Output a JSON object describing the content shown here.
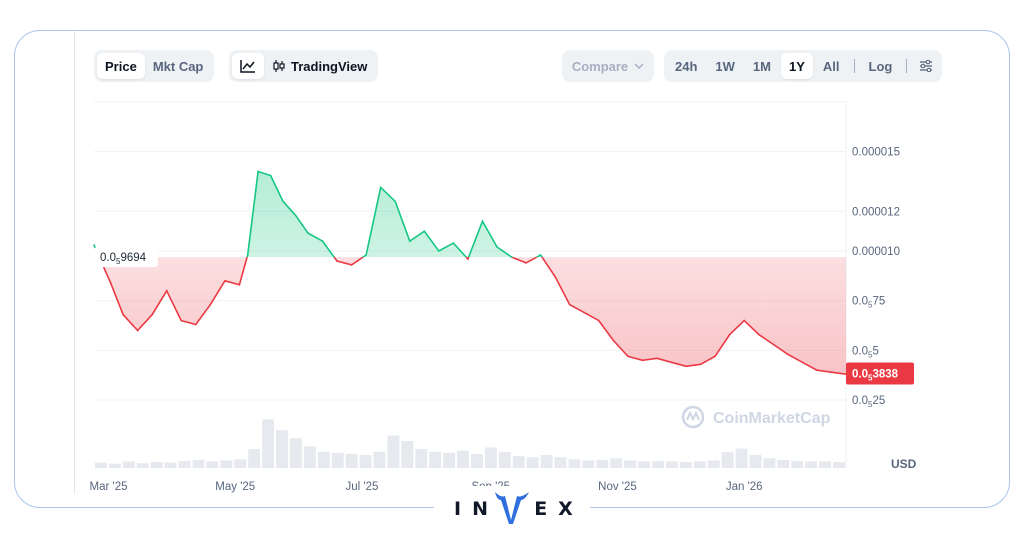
{
  "toolbar": {
    "metric_tabs": [
      "Price",
      "Mkt Cap"
    ],
    "active_metric": "Price",
    "view_tradingview_label": "TradingView",
    "compare_label": "Compare",
    "ranges": [
      "24h",
      "1W",
      "1M",
      "1Y",
      "All"
    ],
    "active_range": "1Y",
    "log_label": "Log"
  },
  "colors": {
    "up": "#16c784",
    "down": "#ea3943",
    "baseline_label_bg": "#ffffff",
    "current_label_bg": "#ea3943"
  },
  "icons": [
    "line-chart-icon",
    "candlestick-icon",
    "chevron-down-icon",
    "settings-sliders-icon",
    "coinmarketcap-logo-icon"
  ],
  "watermark": "CoinMarketCap",
  "currency_label": "USD",
  "brand": "INVEX",
  "chart_data": {
    "type": "area",
    "currency": "USD",
    "x_ticks": [
      "Mar '25",
      "May '25",
      "Jul '25",
      "Sep '25",
      "Nov '25",
      "Jan '26"
    ],
    "y_ticks": [
      {
        "value": 2.5e-06,
        "zeros": "5",
        "digits": "25"
      },
      {
        "value": 5e-06,
        "zeros": "5",
        "digits": "5"
      },
      {
        "value": 7.5e-06,
        "zeros": "5",
        "digits": "75"
      },
      {
        "value": 1e-05,
        "text": "0.000010"
      },
      {
        "value": 1.2e-05,
        "text": "0.000012"
      },
      {
        "value": 1.5e-05,
        "text": "0.000015"
      }
    ],
    "baseline": {
      "value": 9.694e-06,
      "zeros": "5",
      "digits": "9694"
    },
    "current": {
      "value": 3.838e-06,
      "zeros": "5",
      "digits": "3838"
    },
    "ylim": [
      2.2e-06,
      1.75e-05
    ],
    "grid": true,
    "series": [
      {
        "x": [
          "2025-02-22",
          "2025-03-02",
          "2025-03-08",
          "2025-03-15",
          "2025-03-22",
          "2025-03-29",
          "2025-04-05",
          "2025-04-12",
          "2025-04-19",
          "2025-04-26",
          "2025-05-03",
          "2025-05-07",
          "2025-05-12",
          "2025-05-18",
          "2025-05-24",
          "2025-05-30",
          "2025-06-05",
          "2025-06-12",
          "2025-06-19",
          "2025-06-26",
          "2025-07-03",
          "2025-07-10",
          "2025-07-17",
          "2025-07-24",
          "2025-07-31",
          "2025-08-07",
          "2025-08-14",
          "2025-08-21",
          "2025-08-28",
          "2025-09-04",
          "2025-09-11",
          "2025-09-18",
          "2025-09-25",
          "2025-10-02",
          "2025-10-09",
          "2025-10-16",
          "2025-10-23",
          "2025-10-30",
          "2025-11-06",
          "2025-11-13",
          "2025-11-20",
          "2025-11-27",
          "2025-12-04",
          "2025-12-11",
          "2025-12-18",
          "2025-12-25",
          "2026-01-01",
          "2026-01-08",
          "2026-01-15",
          "2026-01-22",
          "2026-01-29",
          "2026-02-05",
          "2026-02-12",
          "2026-02-19"
        ],
        "values": [
          1.03e-05,
          8.4e-06,
          6.8e-06,
          6e-06,
          6.8e-06,
          8e-06,
          6.5e-06,
          6.3e-06,
          7.3e-06,
          8.5e-06,
          8.3e-06,
          9.8e-06,
          1.4e-05,
          1.38e-05,
          1.25e-05,
          1.18e-05,
          1.09e-05,
          1.05e-05,
          9.5e-06,
          9.3e-06,
          9.8e-06,
          1.32e-05,
          1.25e-05,
          1.05e-05,
          1.1e-05,
          1e-05,
          1.04e-05,
          9.6e-06,
          1.15e-05,
          1.02e-05,
          9.7e-06,
          9.4e-06,
          9.8e-06,
          8.7e-06,
          7.3e-06,
          6.9e-06,
          6.5e-06,
          5.5e-06,
          4.7e-06,
          4.5e-06,
          4.6e-06,
          4.4e-06,
          4.2e-06,
          4.3e-06,
          4.7e-06,
          5.8e-06,
          6.5e-06,
          5.8e-06,
          5.3e-06,
          4.8e-06,
          4.4e-06,
          4e-06,
          3.9e-06,
          3.8e-06
        ]
      }
    ],
    "volume": [
      0.1,
      0.08,
      0.12,
      0.09,
      0.11,
      0.1,
      0.13,
      0.15,
      0.12,
      0.14,
      0.16,
      0.35,
      0.9,
      0.7,
      0.55,
      0.4,
      0.3,
      0.28,
      0.26,
      0.24,
      0.3,
      0.6,
      0.5,
      0.35,
      0.3,
      0.28,
      0.32,
      0.26,
      0.38,
      0.3,
      0.22,
      0.2,
      0.24,
      0.2,
      0.16,
      0.14,
      0.15,
      0.18,
      0.14,
      0.12,
      0.13,
      0.12,
      0.11,
      0.12,
      0.14,
      0.3,
      0.36,
      0.24,
      0.18,
      0.15,
      0.13,
      0.12,
      0.12,
      0.11
    ]
  }
}
